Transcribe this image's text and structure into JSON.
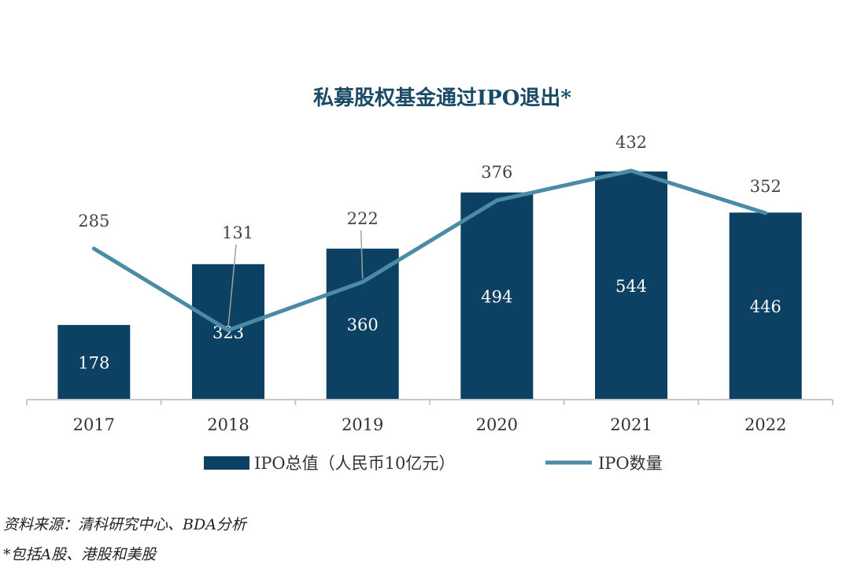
{
  "chart_data": {
    "type": "bar",
    "title": "私募股权基金通过IPO退出*",
    "categories": [
      "2017",
      "2018",
      "2019",
      "2020",
      "2021",
      "2022"
    ],
    "series": [
      {
        "name": "IPO总值（人民币10亿元）",
        "kind": "bar",
        "color": "#0d4163",
        "values": [
          178,
          323,
          360,
          494,
          544,
          446
        ]
      },
      {
        "name": "IPO数量",
        "kind": "line",
        "color": "#4b8ba6",
        "values": [
          285,
          131,
          222,
          376,
          432,
          352
        ]
      }
    ],
    "bar_ylim": [
      0,
      600
    ],
    "line_ylim": [
      0,
      500
    ],
    "legend_position": "bottom",
    "grid": false
  },
  "footnotes": {
    "source": "资料来源：清科研究中心、BDA分析",
    "note": "*包括A股、港股和美股"
  }
}
